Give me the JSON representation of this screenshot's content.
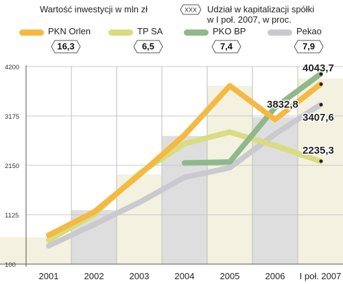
{
  "header": {
    "left_title": "Wartość inwestycji w mln zł",
    "badge_placeholder": "XXX",
    "right_title_line1": "Udział w kapitalizacji spółki",
    "right_title_line2": "w I poł. 2007, w proc."
  },
  "colors": {
    "pkn": "#f5b942",
    "tpsa": "#d9dc80",
    "pko": "#8fb98a",
    "pekao": "#c9c9cf",
    "bar_light": "#f3f1df",
    "bar_gray": "#dedede"
  },
  "legend": [
    {
      "name": "PKN Orlen",
      "share": "16,3"
    },
    {
      "name": "TP SA",
      "share": "6,5"
    },
    {
      "name": "PKO BP",
      "share": "7,4"
    },
    {
      "name": "Pekao",
      "share": "7,9"
    }
  ],
  "chart_data": {
    "type": "line",
    "categories": [
      "2001",
      "2002",
      "2003",
      "2004",
      "2005",
      "2006",
      "I poł. 2007"
    ],
    "ylim": [
      100,
      4200
    ],
    "yticks": [
      100,
      1125,
      2150,
      3175,
      4200
    ],
    "ytick_labels": [
      "100",
      "1125",
      "2150",
      "3175",
      "4200"
    ],
    "grid": true,
    "series": [
      {
        "name": "PKN Orlen",
        "color_key": "pkn",
        "values": [
          700,
          1180,
          1950,
          2780,
          3800,
          3100,
          3832.8
        ]
      },
      {
        "name": "TP SA",
        "color_key": "tpsa",
        "values": [
          600,
          1130,
          1980,
          2600,
          2840,
          2560,
          2235.3
        ]
      },
      {
        "name": "PKO BP",
        "color_key": "pko",
        "values": [
          null,
          null,
          null,
          2200,
          2220,
          3350,
          4043.7
        ]
      },
      {
        "name": "Pekao",
        "color_key": "pekao",
        "values": [
          480,
          920,
          1380,
          1900,
          2100,
          2800,
          3407.6
        ]
      }
    ],
    "end_labels": [
      "4043,7",
      "3832,8",
      "3407,6",
      "2235,3"
    ],
    "background_bars": [
      {
        "category": "2001",
        "value": 660
      },
      {
        "category": "2002",
        "value": 1220
      },
      {
        "category": "2003",
        "value": 1960
      },
      {
        "category": "2004",
        "value": 2760
      },
      {
        "category": "2005",
        "value": 3800
      },
      {
        "category": "2006",
        "value": 3150
      },
      {
        "category": "I poł. 2007",
        "value": 3950
      }
    ]
  }
}
